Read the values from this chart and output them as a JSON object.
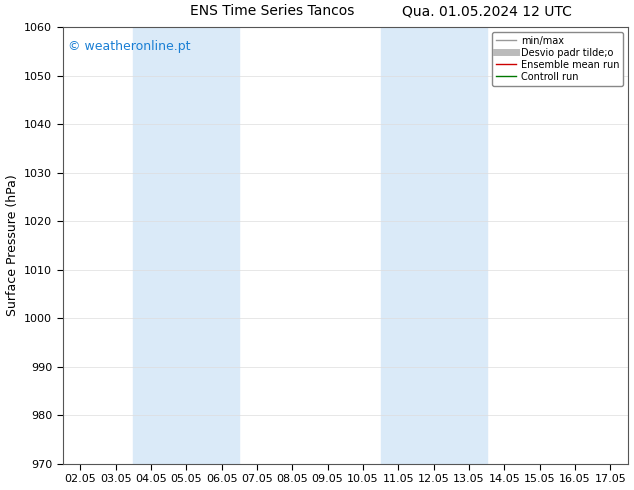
{
  "title_left": "ENS Time Series Tancos",
  "title_right": "Qua. 01.05.2024 12 UTC",
  "ylabel": "Surface Pressure (hPa)",
  "ylim": [
    970,
    1060
  ],
  "yticks": [
    970,
    980,
    990,
    1000,
    1010,
    1020,
    1030,
    1040,
    1050,
    1060
  ],
  "xtick_labels": [
    "02.05",
    "03.05",
    "04.05",
    "05.05",
    "06.05",
    "07.05",
    "08.05",
    "09.05",
    "10.05",
    "11.05",
    "12.05",
    "13.05",
    "14.05",
    "15.05",
    "16.05",
    "17.05"
  ],
  "shaded_regions": [
    {
      "xstart": 2,
      "xend": 4
    },
    {
      "xstart": 9,
      "xend": 11
    }
  ],
  "shaded_color": "#daeaf8",
  "watermark": "© weatheronline.pt",
  "watermark_color": "#1a7fd4",
  "legend_items": [
    {
      "label": "min/max",
      "color": "#999999",
      "lw": 1.0,
      "style": "-"
    },
    {
      "label": "Desvio padr tilde;o",
      "color": "#bbbbbb",
      "lw": 5,
      "style": "-"
    },
    {
      "label": "Ensemble mean run",
      "color": "#cc0000",
      "lw": 1.0,
      "style": "-"
    },
    {
      "label": "Controll run",
      "color": "#007700",
      "lw": 1.0,
      "style": "-"
    }
  ],
  "background_color": "#ffffff",
  "grid_color": "#dddddd",
  "spine_color": "#555555",
  "title_fontsize": 10,
  "tick_fontsize": 8,
  "ylabel_fontsize": 9,
  "watermark_fontsize": 9
}
